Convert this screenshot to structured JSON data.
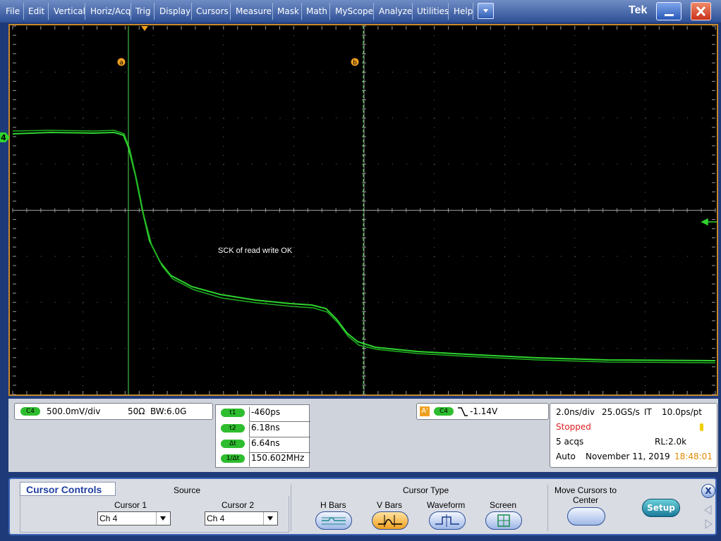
{
  "menu": [
    "File",
    "Edit",
    "Vertical",
    "Horiz/Acq",
    "Trig",
    "Display",
    "Cursors",
    "Measure",
    "Mask",
    "Math",
    "MyScope",
    "Analyze",
    "Utilities",
    "Help"
  ],
  "brand": "Tek",
  "display": {
    "channel_marker": "4",
    "cursor_a": "a",
    "cursor_b": "b",
    "annotation": "SCK of read write OK"
  },
  "status": {
    "channel": {
      "badge": "C4",
      "scale": "500.0mV/div",
      "impedance": "50Ω",
      "bandwidth": "BW:6.0G"
    },
    "cursors": [
      {
        "label": "t1",
        "value": "-460ps"
      },
      {
        "label": "t2",
        "value": "6.18ns"
      },
      {
        "label": "Δt",
        "value": "6.64ns"
      },
      {
        "label": "1/Δt",
        "value": "150.602MHz"
      }
    ],
    "trigger": {
      "source_label": "A'",
      "badge": "C4",
      "level": "-1.14V"
    },
    "horizontal": {
      "scale": "2.0ns/div",
      "rate": "25.0GS/s",
      "mode": "IT",
      "resolution": "10.0ps/pt",
      "state": "Stopped",
      "acqs": "5 acqs",
      "record_length": "RL:2.0k",
      "trigger_mode": "Auto",
      "date": "November 11, 2019",
      "time": "18:48:01"
    }
  },
  "panel": {
    "title": "Cursor Controls",
    "source": "Source",
    "cursor1": {
      "label": "Cursor 1",
      "value": "Ch 4"
    },
    "cursor2": {
      "label": "Cursor 2",
      "value": "Ch 4"
    },
    "cursor_type": "Cursor Type",
    "types": [
      "H Bars",
      "V Bars",
      "Waveform",
      "Screen"
    ],
    "move": "Move Cursors to Center",
    "setup": "Setup",
    "close": "X"
  }
}
